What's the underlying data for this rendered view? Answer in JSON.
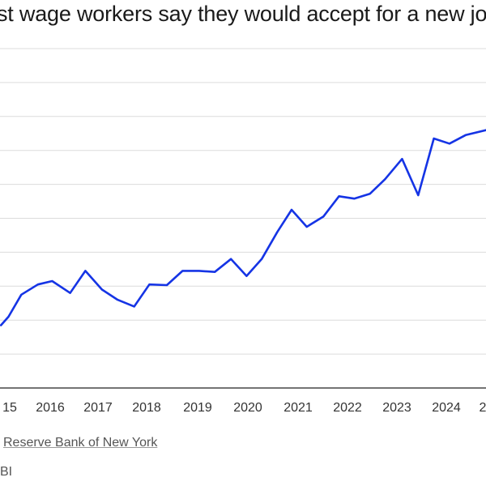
{
  "header": {
    "title": "st wage workers say they would accept for a new jo"
  },
  "footer": {
    "source": " Reserve Bank of New York",
    "credit": "BI"
  },
  "chart_data": {
    "type": "line",
    "title": "st wage workers say they would accept for a new jo",
    "xlabel": "",
    "ylabel": "",
    "grid": true,
    "legend": "none",
    "x_ticks": [
      "15",
      "2016",
      "2017",
      "2018",
      "2019",
      "2020",
      "2021",
      "2022",
      "2023",
      "2024",
      "2"
    ],
    "xlim": [
      2015.0,
      2025.25
    ],
    "ylim": [
      0,
      10
    ],
    "line_color": "#1534e5",
    "series": [
      {
        "points": [
          {
            "x": 2015.02,
            "y": 1.85
          },
          {
            "x": 2015.18,
            "y": 2.1
          },
          {
            "x": 2015.45,
            "y": 2.75
          },
          {
            "x": 2015.8,
            "y": 3.05
          },
          {
            "x": 2016.1,
            "y": 3.15
          },
          {
            "x": 2016.48,
            "y": 2.8
          },
          {
            "x": 2016.8,
            "y": 3.45
          },
          {
            "x": 2017.15,
            "y": 2.9
          },
          {
            "x": 2017.48,
            "y": 2.6
          },
          {
            "x": 2017.83,
            "y": 2.4
          },
          {
            "x": 2018.15,
            "y": 3.05
          },
          {
            "x": 2018.52,
            "y": 3.03
          },
          {
            "x": 2018.85,
            "y": 3.45
          },
          {
            "x": 2019.2,
            "y": 3.45
          },
          {
            "x": 2019.53,
            "y": 3.42
          },
          {
            "x": 2019.87,
            "y": 3.8
          },
          {
            "x": 2020.2,
            "y": 3.3
          },
          {
            "x": 2020.52,
            "y": 3.8
          },
          {
            "x": 2020.85,
            "y": 4.6
          },
          {
            "x": 2021.15,
            "y": 5.25
          },
          {
            "x": 2021.47,
            "y": 4.75
          },
          {
            "x": 2021.82,
            "y": 5.05
          },
          {
            "x": 2022.15,
            "y": 5.65
          },
          {
            "x": 2022.47,
            "y": 5.58
          },
          {
            "x": 2022.8,
            "y": 5.72
          },
          {
            "x": 2023.12,
            "y": 6.15
          },
          {
            "x": 2023.48,
            "y": 6.75
          },
          {
            "x": 2023.82,
            "y": 5.68
          },
          {
            "x": 2024.15,
            "y": 7.35
          },
          {
            "x": 2024.48,
            "y": 7.2
          },
          {
            "x": 2024.82,
            "y": 7.45
          },
          {
            "x": 2025.25,
            "y": 7.6
          }
        ]
      }
    ]
  }
}
